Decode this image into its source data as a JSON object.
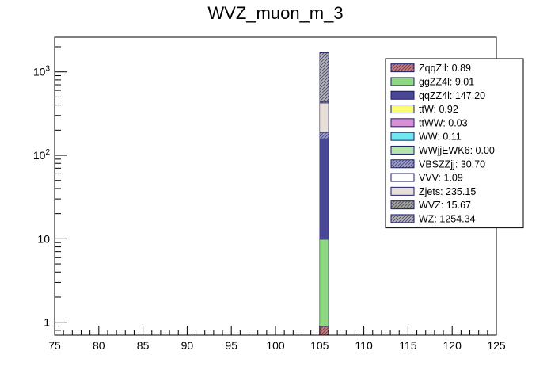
{
  "chart_data": {
    "type": "bar",
    "stacked": true,
    "title": "WVZ_muon_m_3",
    "xlabel": "",
    "ylabel": "",
    "x_range": [
      75,
      125
    ],
    "y_scale": "log",
    "y_range": [
      0.7,
      2600
    ],
    "x_ticks": [
      75,
      80,
      85,
      90,
      95,
      100,
      105,
      110,
      115,
      120,
      125
    ],
    "y_tick_labels": [
      {
        "value": 1,
        "label": "1"
      },
      {
        "value": 10,
        "label": "10"
      },
      {
        "value": 100,
        "label": "10",
        "sup": "2"
      },
      {
        "value": 1000,
        "label": "10",
        "sup": "3"
      }
    ],
    "bin": [
      105,
      106
    ],
    "grid": false,
    "legend_position": "top-right",
    "series": [
      {
        "name": "ZqqZll",
        "legend": "ZqqZll: 0.89",
        "value": 0.89,
        "color": "#c87d82",
        "hatch": true
      },
      {
        "name": "ggZZ4l",
        "legend": "ggZZ4l: 9.01",
        "value": 9.01,
        "color": "#8ed882",
        "hatch": false
      },
      {
        "name": "qqZZ4l",
        "legend": "qqZZ4l: 147.20",
        "value": 147.2,
        "color": "#4b47a8",
        "hatch": true
      },
      {
        "name": "ttW",
        "legend": "ttW: 0.92",
        "value": 0.92,
        "color": "#fcfc72",
        "hatch": false
      },
      {
        "name": "ttWW",
        "legend": "ttWW: 0.03",
        "value": 0.03,
        "color": "#d690d6",
        "hatch": false
      },
      {
        "name": "WW",
        "legend": "WW: 0.11",
        "value": 0.11,
        "color": "#70e8f0",
        "hatch": false
      },
      {
        "name": "WWjjEWK6",
        "legend": "WWjjEWK6: 0.00",
        "value": 0.0,
        "color": "#b6e6b0",
        "hatch": false
      },
      {
        "name": "VBSZZjj",
        "legend": "VBSZZjj: 30.70",
        "value": 30.7,
        "color": "#9c9cd8",
        "hatch": true
      },
      {
        "name": "VVV",
        "legend": "VVV: 1.09",
        "value": 1.09,
        "color": "#ffffff",
        "hatch": false
      },
      {
        "name": "Zjets",
        "legend": "Zjets: 235.15",
        "value": 235.15,
        "color": "#e6e0d8",
        "hatch": false
      },
      {
        "name": "WVZ",
        "legend": "WVZ: 15.67",
        "value": 15.67,
        "color": "#a4a4a4",
        "hatch": true
      },
      {
        "name": "WZ",
        "legend": "WZ: 1254.34",
        "value": 1254.34,
        "color": "#b4b4c4",
        "hatch": true
      }
    ]
  }
}
